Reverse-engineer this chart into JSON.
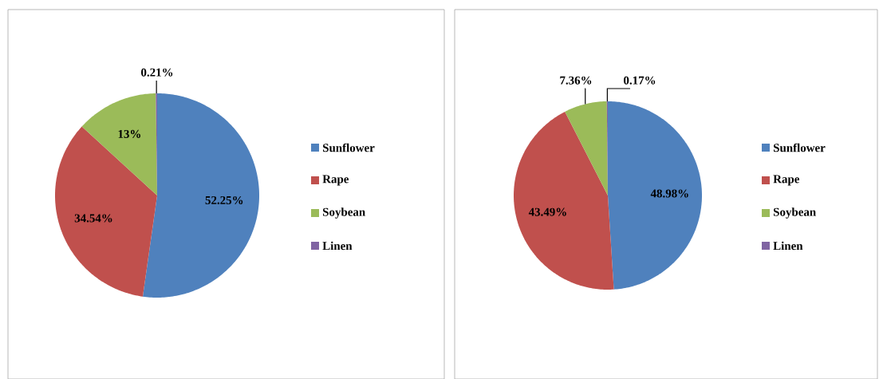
{
  "chart_data": [
    {
      "type": "pie",
      "categories": [
        "Sunflower",
        "Rape",
        "Soybean",
        "Linen"
      ],
      "values": [
        52.25,
        34.54,
        13,
        0.21
      ],
      "colors": [
        "#4f81bd",
        "#c0504d",
        "#9bbb59",
        "#8064a2"
      ],
      "value_labels": [
        "52.25%",
        "34.54%",
        "13%",
        "0.21%"
      ],
      "legend": "right"
    },
    {
      "type": "pie",
      "categories": [
        "Sunflower",
        "Rape",
        "Soybean",
        "Linen"
      ],
      "values": [
        48.98,
        43.49,
        7.36,
        0.17
      ],
      "colors": [
        "#4f81bd",
        "#c0504d",
        "#9bbb59",
        "#8064a2"
      ],
      "value_labels": [
        "48.98%",
        "43.49%",
        "7.36%",
        "0.17%"
      ],
      "legend": "right"
    }
  ]
}
